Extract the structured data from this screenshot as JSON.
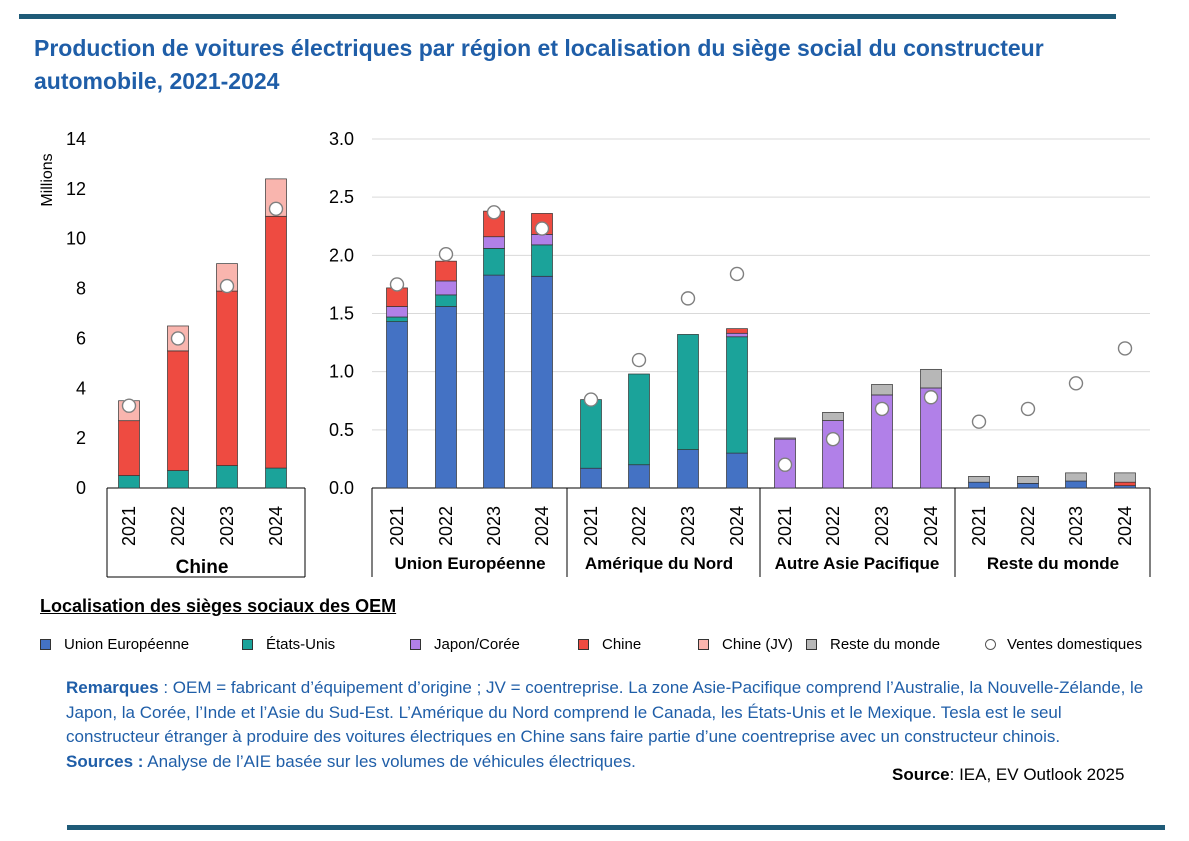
{
  "title": "Production de voitures électriques par région et localisation du siège social du constructeur automobile, 2021-2024",
  "chart_data": [
    {
      "type": "stacked-bar",
      "region": "Chine",
      "ylabel": "Millions",
      "ylim": [
        0,
        14
      ],
      "yticks": [
        "0",
        "2",
        "4",
        "6",
        "8",
        "10",
        "12",
        "14"
      ],
      "categories": [
        "2021",
        "2022",
        "2023",
        "2024"
      ],
      "series": [
        {
          "name": "Union Européenne",
          "values": [
            0,
            0,
            0,
            0
          ]
        },
        {
          "name": "États-Unis",
          "values": [
            0.5,
            0.7,
            0.9,
            0.8
          ]
        },
        {
          "name": "Japon/Corée",
          "values": [
            0,
            0,
            0,
            0
          ]
        },
        {
          "name": "Chine",
          "values": [
            2.2,
            4.8,
            7.0,
            10.1
          ]
        },
        {
          "name": "Chine (JV)",
          "values": [
            0.8,
            1.0,
            1.1,
            1.5
          ]
        },
        {
          "name": "Reste du monde",
          "values": [
            0,
            0,
            0,
            0
          ]
        }
      ],
      "domestic_sales": [
        3.3,
        6.0,
        8.1,
        11.2
      ]
    },
    {
      "type": "stacked-bar",
      "ylim": [
        0,
        3.0
      ],
      "yticks": [
        "0.0",
        "0.5",
        "1.0",
        "1.5",
        "2.0",
        "2.5",
        "3.0"
      ],
      "groups": [
        {
          "region": "Union Européenne",
          "categories": [
            "2021",
            "2022",
            "2023",
            "2024"
          ],
          "series": [
            {
              "name": "Union Européenne",
              "values": [
                1.43,
                1.56,
                1.83,
                1.82
              ]
            },
            {
              "name": "États-Unis",
              "values": [
                0.04,
                0.1,
                0.23,
                0.27
              ]
            },
            {
              "name": "Japon/Corée",
              "values": [
                0.09,
                0.12,
                0.1,
                0.09
              ]
            },
            {
              "name": "Chine",
              "values": [
                0.16,
                0.17,
                0.22,
                0.18
              ]
            },
            {
              "name": "Chine (JV)",
              "values": [
                0,
                0,
                0,
                0
              ]
            },
            {
              "name": "Reste du monde",
              "values": [
                0,
                0,
                0,
                0
              ]
            }
          ],
          "domestic_sales": [
            1.75,
            2.01,
            2.37,
            2.23
          ]
        },
        {
          "region": "Amérique du Nord",
          "categories": [
            "2021",
            "2022",
            "2023",
            "2024"
          ],
          "series": [
            {
              "name": "Union Européenne",
              "values": [
                0.17,
                0.2,
                0.33,
                0.3
              ]
            },
            {
              "name": "États-Unis",
              "values": [
                0.59,
                0.78,
                0.99,
                1.0
              ]
            },
            {
              "name": "Japon/Corée",
              "values": [
                0,
                0,
                0,
                0.03
              ]
            },
            {
              "name": "Chine",
              "values": [
                0,
                0,
                0,
                0.04
              ]
            },
            {
              "name": "Chine (JV)",
              "values": [
                0,
                0,
                0,
                0
              ]
            },
            {
              "name": "Reste du monde",
              "values": [
                0,
                0,
                0,
                0
              ]
            }
          ],
          "domestic_sales": [
            0.76,
            1.1,
            1.63,
            1.84
          ]
        },
        {
          "region": "Autre Asie  Pacifique",
          "categories": [
            "2021",
            "2022",
            "2023",
            "2024"
          ],
          "series": [
            {
              "name": "Union Européenne",
              "values": [
                0,
                0,
                0,
                0
              ]
            },
            {
              "name": "États-Unis",
              "values": [
                0,
                0,
                0,
                0
              ]
            },
            {
              "name": "Japon/Corée",
              "values": [
                0.42,
                0.58,
                0.8,
                0.86
              ]
            },
            {
              "name": "Chine",
              "values": [
                0,
                0,
                0,
                0
              ]
            },
            {
              "name": "Chine (JV)",
              "values": [
                0,
                0,
                0,
                0
              ]
            },
            {
              "name": "Reste du monde",
              "values": [
                0.01,
                0.07,
                0.09,
                0.16
              ]
            }
          ],
          "domestic_sales": [
            0.2,
            0.42,
            0.68,
            0.78
          ]
        },
        {
          "region": "Reste du monde",
          "categories": [
            "2021",
            "2022",
            "2023",
            "2024"
          ],
          "series": [
            {
              "name": "Union Européenne",
              "values": [
                0.05,
                0.04,
                0.06,
                0.02
              ]
            },
            {
              "name": "États-Unis",
              "values": [
                0,
                0,
                0,
                0
              ]
            },
            {
              "name": "Japon/Corée",
              "values": [
                0,
                0,
                0,
                0
              ]
            },
            {
              "name": "Chine",
              "values": [
                0,
                0,
                0,
                0.03
              ]
            },
            {
              "name": "Chine (JV)",
              "values": [
                0,
                0,
                0,
                0
              ]
            },
            {
              "name": "Reste du monde",
              "values": [
                0.05,
                0.06,
                0.07,
                0.08
              ]
            }
          ],
          "domestic_sales": [
            0.57,
            0.68,
            0.9,
            1.2
          ]
        }
      ]
    }
  ],
  "legend": {
    "title": "Localisation des sièges sociaux  des OEM",
    "items": [
      {
        "label": "Union Européenne",
        "color": "#4472c4"
      },
      {
        "label": "États-Unis",
        "color": "#1ba39a"
      },
      {
        "label": "Japon/Corée",
        "color": "#b180e8"
      },
      {
        "label": "Chine",
        "color": "#ee4b41"
      },
      {
        "label": "Chine (JV)",
        "color": "#f9b5ae"
      },
      {
        "label": "Reste du monde",
        "color": "#b7b7b7"
      },
      {
        "label": "Ventes domestiques",
        "color": "#ffffff"
      }
    ]
  },
  "notes": {
    "remarks_label": "Remarques",
    "remarks_text": " : OEM = fabricant d’équipement d’origine ; JV = coentreprise. La zone Asie-Pacifique comprend l’Australie, la Nouvelle-Zélande, le Japon, la Corée, l’Inde et l’Asie du Sud-Est. L’Amérique du Nord comprend le Canada, les États-Unis et le Mexique. Tesla est le seul constructeur étranger à produire des voitures électriques en Chine sans faire partie d’une coentreprise avec un constructeur chinois.",
    "sources_label": "Sources :",
    "sources_text": " Analyse de l’AIE basée sur les volumes de véhicules électriques."
  },
  "source": {
    "label": "Source",
    "text": ": IEA, EV Outlook 2025"
  }
}
